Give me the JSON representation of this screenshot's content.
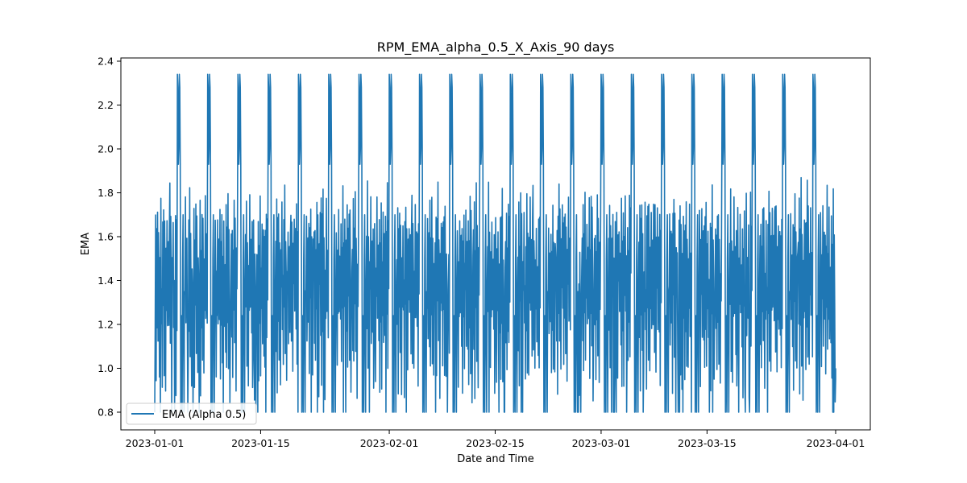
{
  "chart_data": {
    "type": "line",
    "title": "RPM_EMA_alpha_0.5_X_Axis_90 days",
    "xlabel": "Date and Time",
    "ylabel": "EMA",
    "x_range": [
      "2023-01-01",
      "2023-04-01"
    ],
    "ylim": [
      0.8,
      2.4
    ],
    "x_ticks": [
      "2023-01-01",
      "2023-01-15",
      "2023-02-01",
      "2023-02-15",
      "2023-03-01",
      "2023-03-15",
      "2023-04-01"
    ],
    "y_ticks": [
      "0.8",
      "1.0",
      "1.2",
      "1.4",
      "1.6",
      "1.8",
      "2.0",
      "2.2",
      "2.4"
    ],
    "grid": false,
    "legend_position": "lower-left",
    "series": [
      {
        "name": "EMA (Alpha 0.5)",
        "color": "#1f77b4",
        "daily_cycle": [
          1.55,
          1.14,
          1.69,
          0.95,
          1.62,
          1.25,
          1.78,
          1.05,
          1.66,
          1.38,
          0.93,
          1.52,
          1.31,
          1.71,
          1.19,
          1.44
        ],
        "period_days": 4,
        "peak_pattern": [
          2.34,
          2.28,
          1.93,
          2.0,
          2.34,
          2.28,
          1.93,
          0.8,
          1.1,
          1.24,
          0.8,
          1.5,
          1.7,
          1.1,
          0.8,
          1.35
        ],
        "x": [
          "2023-01-01",
          "2023-01-05",
          "2023-01-09",
          "2023-01-13",
          "2023-01-17",
          "2023-01-21",
          "2023-01-25",
          "2023-01-29",
          "2023-02-02",
          "2023-02-06",
          "2023-02-10",
          "2023-02-14",
          "2023-02-18",
          "2023-02-22",
          "2023-02-26",
          "2023-03-02",
          "2023-03-06",
          "2023-03-10",
          "2023-03-14",
          "2023-03-18",
          "2023-03-22",
          "2023-03-26",
          "2023-03-30",
          "2023-04-01"
        ],
        "y_min": 0.8,
        "y_max": 2.34
      }
    ]
  }
}
